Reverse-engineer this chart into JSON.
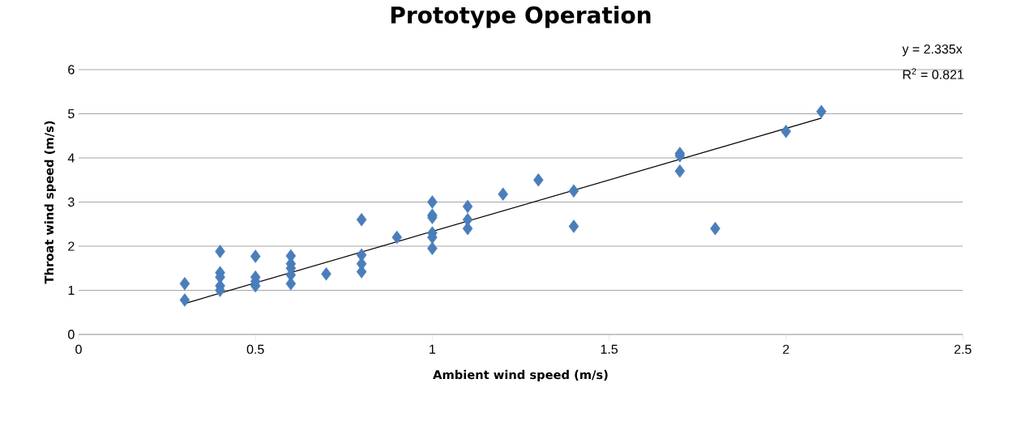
{
  "chart_data": {
    "type": "scatter",
    "title": "Prototype Operation",
    "xlabel": "Ambient wind speed (m/s)",
    "ylabel": "Throat wind speed (m/s)",
    "annotations": [
      "y = 2.335x",
      "R$^{2}$ = 0.821"
    ],
    "xlim": [
      0,
      2.5
    ],
    "xticks": [
      0,
      0.5,
      1,
      1.5,
      2,
      2.5
    ],
    "ylim": [
      0,
      6
    ],
    "yticks": [
      0,
      1,
      2,
      3,
      4,
      5,
      6
    ],
    "grid": "y",
    "series": [
      {
        "marker": "diamond",
        "color": "#4a7ebb",
        "x": [
          0.3,
          0.3,
          0.4,
          0.4,
          0.4,
          0.4,
          0.4,
          0.5,
          0.5,
          0.5,
          0.5,
          0.6,
          0.6,
          0.6,
          0.6,
          0.6,
          0.7,
          0.8,
          0.8,
          0.8,
          0.8,
          0.9,
          1.0,
          1.0,
          1.0,
          1.0,
          1.0,
          1.0,
          1.1,
          1.1,
          1.1,
          1.2,
          1.3,
          1.4,
          1.4,
          1.7,
          1.7,
          1.7,
          1.8,
          2.0,
          2.1
        ],
        "values": [
          1.15,
          0.78,
          1.88,
          1.4,
          1.3,
          1.1,
          1.0,
          1.77,
          1.3,
          1.2,
          1.1,
          1.78,
          1.6,
          1.5,
          1.35,
          1.15,
          1.37,
          2.6,
          1.8,
          1.6,
          1.42,
          2.2,
          3.0,
          2.7,
          2.65,
          2.3,
          2.2,
          1.95,
          2.9,
          2.6,
          2.4,
          3.18,
          3.5,
          3.25,
          2.45,
          4.1,
          4.05,
          3.7,
          2.4,
          4.6,
          5.05
        ]
      },
      {
        "type": "line",
        "color": "#000000",
        "x": [
          0.3,
          2.1
        ],
        "values": [
          0.7,
          4.9
        ]
      }
    ]
  }
}
